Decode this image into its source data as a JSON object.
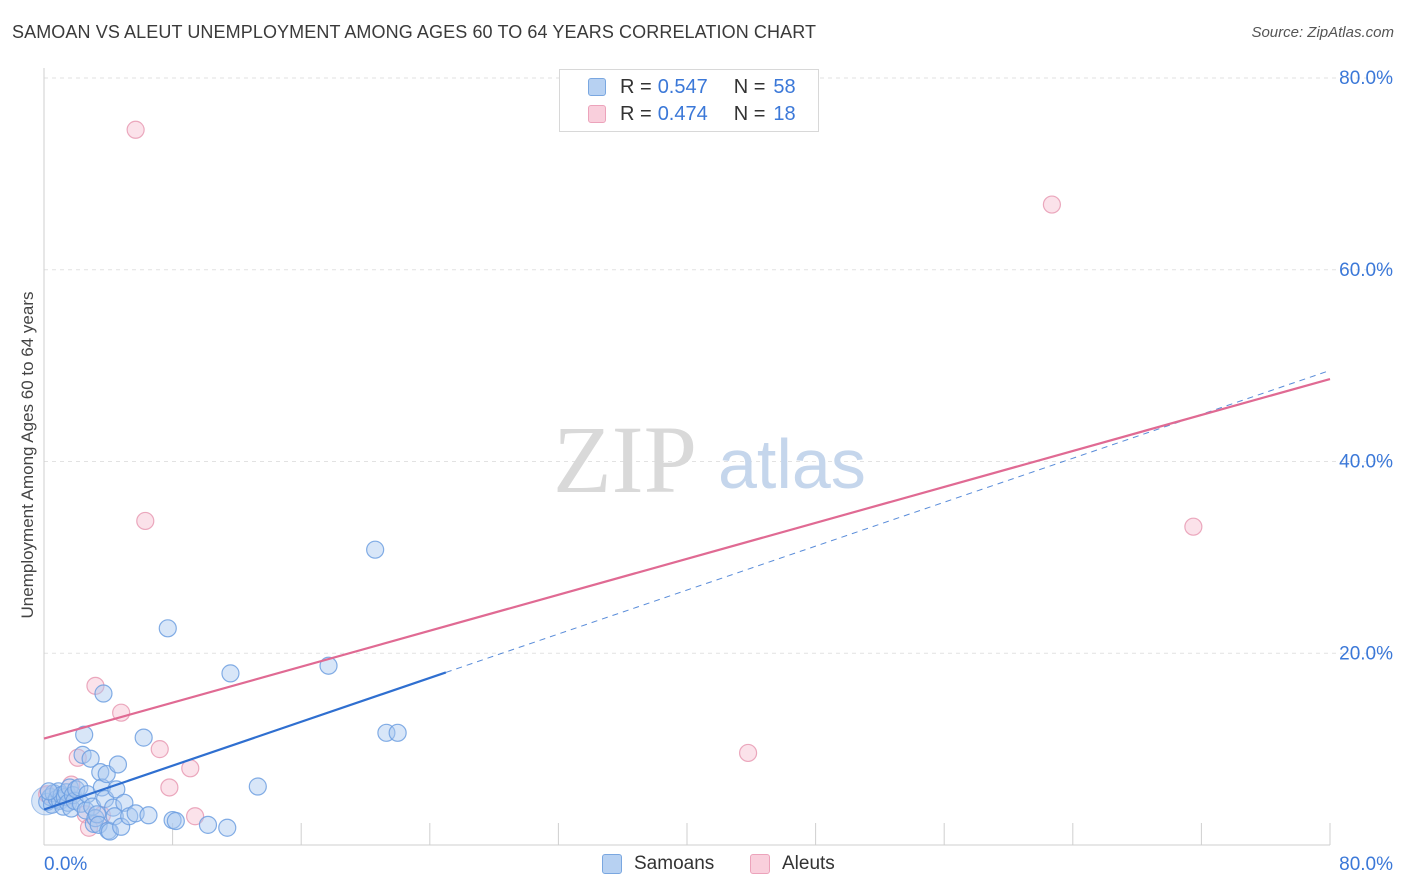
{
  "title": "SAMOAN VS ALEUT UNEMPLOYMENT AMONG AGES 60 TO 64 YEARS CORRELATION CHART",
  "source": "Source: ZipAtlas.com",
  "watermark": {
    "zip": "ZIP",
    "atlas": "atlas"
  },
  "legend": {
    "samoans": {
      "r_label": "R =",
      "r_value": "0.547",
      "n_label": "N =",
      "n_value": "58"
    },
    "aleuts": {
      "r_label": "R =",
      "r_value": "0.474",
      "n_label": "N =",
      "n_value": "18"
    }
  },
  "bottom_legend": {
    "samoans": "Samoans",
    "aleuts": "Aleuts"
  },
  "colors": {
    "samoans_fill": "#a8c8f0",
    "samoans_stroke": "#6d9fe0",
    "samoans_line": "#2f6fd0",
    "aleuts_fill": "#f6bfd0",
    "aleuts_stroke": "#e89ab3",
    "aleuts_line": "#e06a93",
    "tick_text": "#3b78d8",
    "grid": "#e2e2e2"
  },
  "chart_data": {
    "type": "scatter",
    "title": "SAMOAN VS ALEUT UNEMPLOYMENT AMONG AGES 60 TO 64 YEARS CORRELATION CHART",
    "xlabel": "",
    "ylabel": "Unemployment Among Ages 60 to 64 years",
    "xlim": [
      0,
      80
    ],
    "ylim": [
      0,
      80
    ],
    "x_tick_labels": [
      "0.0%",
      "80.0%"
    ],
    "y_ticks": [
      20,
      40,
      60,
      80
    ],
    "y_tick_labels": [
      "20.0%",
      "40.0%",
      "60.0%",
      "80.0%"
    ],
    "grid": true,
    "series": [
      {
        "name": "Samoans",
        "r": 0.547,
        "n": 58,
        "points": [
          [
            0.2,
            4.5
          ],
          [
            0.4,
            5.0
          ],
          [
            0.5,
            4.2
          ],
          [
            0.6,
            5.4
          ],
          [
            0.8,
            4.8
          ],
          [
            0.9,
            5.6
          ],
          [
            1.0,
            4.6
          ],
          [
            1.1,
            5.2
          ],
          [
            1.2,
            4.0
          ],
          [
            1.3,
            5.0
          ],
          [
            1.4,
            5.5
          ],
          [
            1.5,
            4.4
          ],
          [
            1.6,
            6.0
          ],
          [
            1.7,
            3.8
          ],
          [
            1.8,
            5.2
          ],
          [
            1.9,
            4.6
          ],
          [
            2.0,
            5.8
          ],
          [
            2.2,
            6.0
          ],
          [
            2.3,
            4.3
          ],
          [
            2.4,
            9.4
          ],
          [
            2.5,
            11.5
          ],
          [
            2.6,
            3.6
          ],
          [
            2.7,
            5.3
          ],
          [
            2.9,
            9.0
          ],
          [
            3.0,
            4.0
          ],
          [
            3.1,
            2.2
          ],
          [
            3.2,
            2.8
          ],
          [
            3.3,
            3.2
          ],
          [
            3.4,
            2.1
          ],
          [
            3.5,
            7.6
          ],
          [
            3.6,
            6.0
          ],
          [
            3.7,
            15.8
          ],
          [
            3.8,
            4.8
          ],
          [
            3.9,
            7.4
          ],
          [
            4.0,
            1.5
          ],
          [
            4.1,
            1.4
          ],
          [
            4.3,
            3.9
          ],
          [
            4.4,
            3.0
          ],
          [
            4.5,
            5.8
          ],
          [
            4.6,
            8.4
          ],
          [
            4.8,
            1.9
          ],
          [
            5.0,
            4.4
          ],
          [
            5.3,
            3.0
          ],
          [
            5.7,
            3.3
          ],
          [
            6.2,
            11.2
          ],
          [
            6.5,
            3.1
          ],
          [
            7.7,
            22.6
          ],
          [
            8.0,
            2.6
          ],
          [
            8.2,
            2.5
          ],
          [
            10.2,
            2.1
          ],
          [
            11.4,
            1.8
          ],
          [
            11.6,
            17.9
          ],
          [
            13.3,
            6.1
          ],
          [
            17.7,
            18.7
          ],
          [
            20.6,
            30.8
          ],
          [
            21.3,
            11.7
          ],
          [
            22.0,
            11.7
          ],
          [
            0.3,
            5.6
          ]
        ],
        "trend": {
          "x": [
            0,
            25
          ],
          "y": [
            3.7,
            18.0
          ],
          "extended_to": [
            80,
            49.5
          ]
        }
      },
      {
        "name": "Aleuts",
        "r": 0.474,
        "n": 18,
        "points": [
          [
            0.2,
            5.3
          ],
          [
            1.4,
            5.0
          ],
          [
            1.7,
            6.3
          ],
          [
            2.1,
            9.1
          ],
          [
            2.6,
            3.2
          ],
          [
            2.8,
            1.8
          ],
          [
            3.2,
            16.6
          ],
          [
            3.6,
            3.1
          ],
          [
            4.8,
            13.8
          ],
          [
            5.7,
            74.6
          ],
          [
            6.3,
            33.8
          ],
          [
            7.2,
            10.0
          ],
          [
            7.8,
            6.0
          ],
          [
            9.1,
            8.0
          ],
          [
            9.4,
            3.0
          ],
          [
            43.8,
            9.6
          ],
          [
            62.7,
            66.8
          ],
          [
            71.5,
            33.2
          ]
        ],
        "trend": {
          "x": [
            0,
            80
          ],
          "y": [
            11.1,
            48.6
          ]
        }
      }
    ]
  }
}
